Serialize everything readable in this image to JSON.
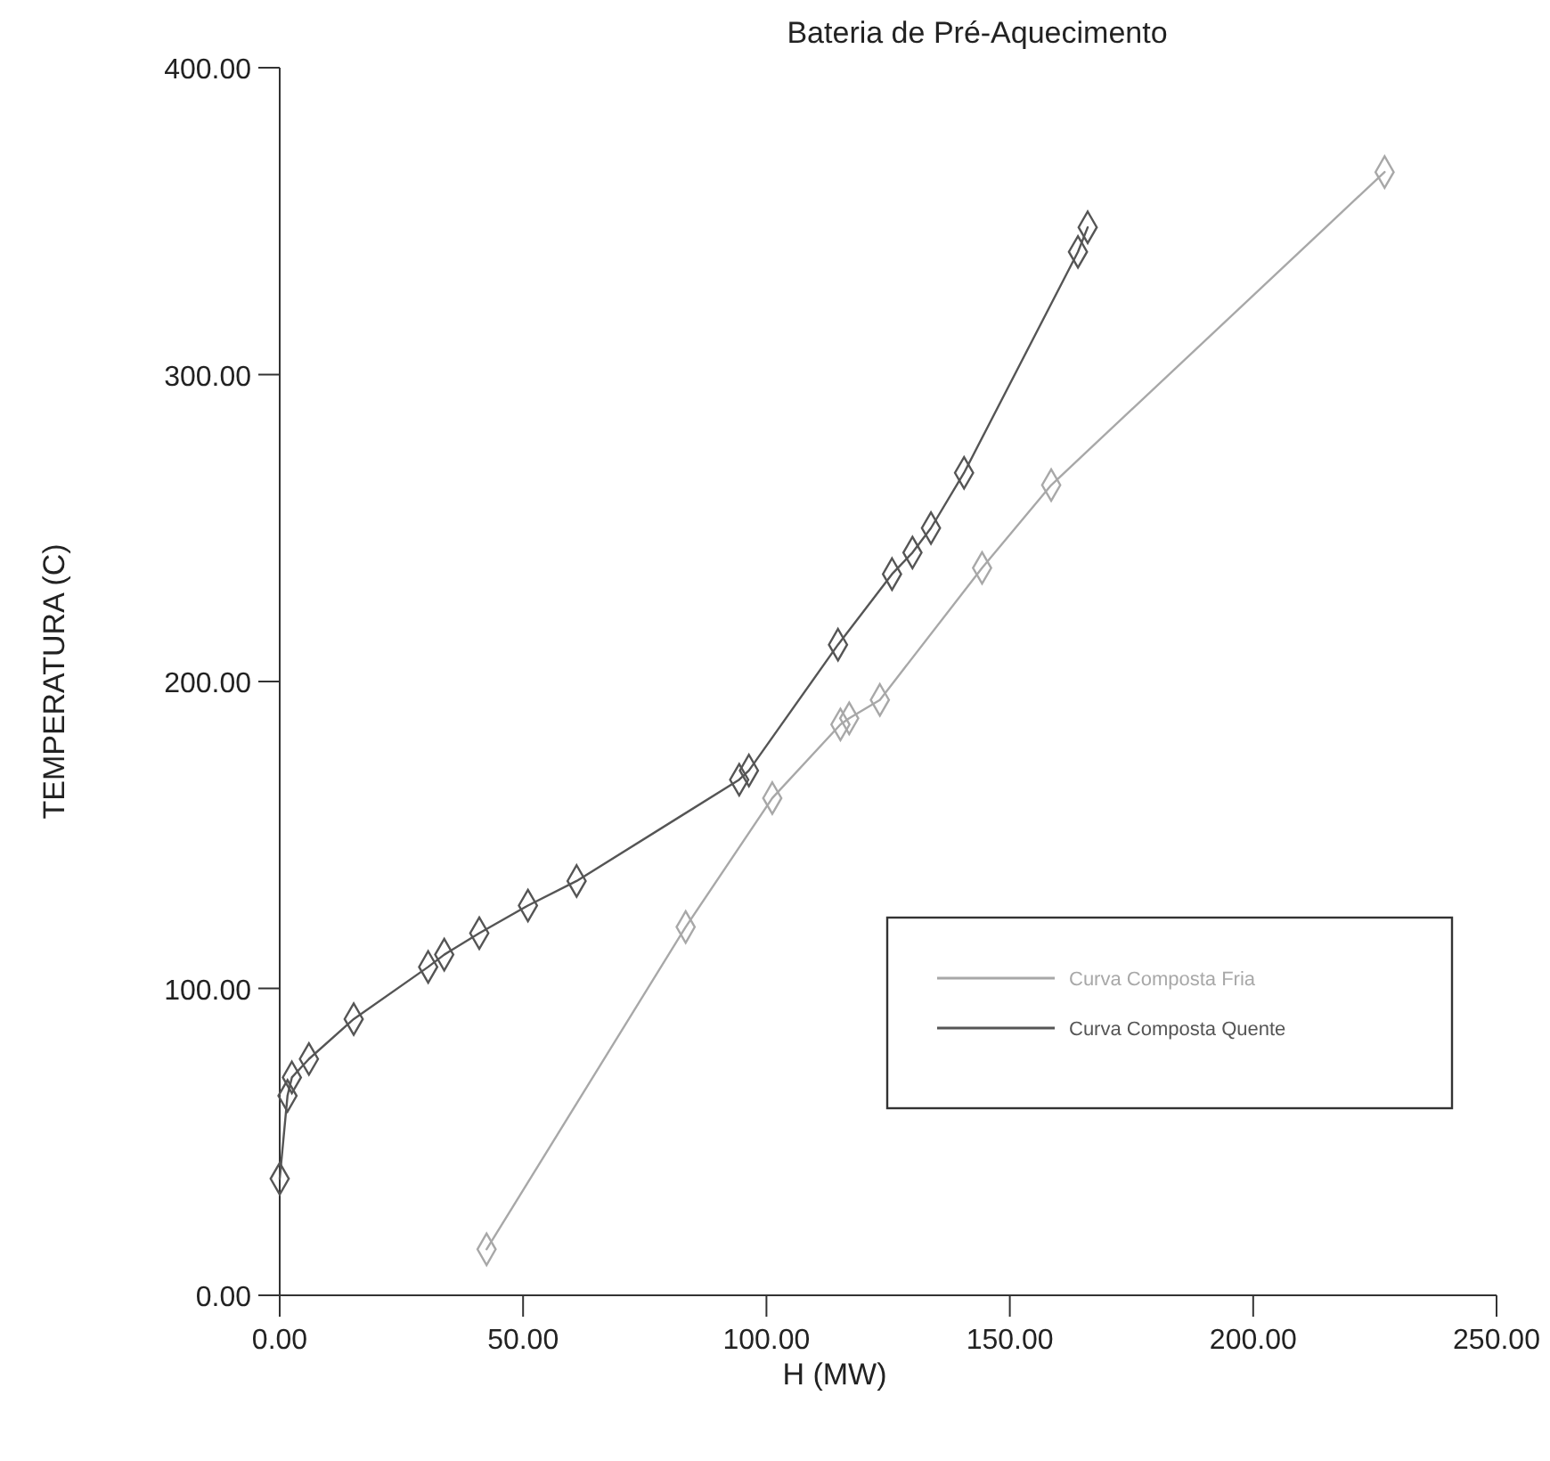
{
  "chart_data": {
    "type": "line",
    "title": "Bateria de Pré-Aquecimento",
    "xlabel": "H (MW)",
    "ylabel": "TEMPERATURA (C)",
    "xlim": [
      0,
      250
    ],
    "xticks": [
      {
        "value": 0,
        "label": "0.00"
      },
      {
        "value": 50,
        "label": "50.00"
      },
      {
        "value": 100,
        "label": "100.00"
      },
      {
        "value": 150,
        "label": "150.00"
      },
      {
        "value": 200,
        "label": "200.00"
      },
      {
        "value": 250,
        "label": "250.00"
      }
    ],
    "ylim": [
      0,
      400
    ],
    "yticks": [
      {
        "value": 0,
        "label": "0.00"
      },
      {
        "value": 100,
        "label": "100.00"
      },
      {
        "value": 200,
        "label": "200.00"
      },
      {
        "value": 300,
        "label": "300.00"
      },
      {
        "value": 400,
        "label": "400.00"
      }
    ],
    "grid": false,
    "legend": "right",
    "marker": "diamond",
    "line_style": "solid",
    "series": [
      {
        "name": "Curva Composta Fria",
        "color": "#a8a8a8",
        "x": [
          42.5,
          83.4,
          101.2,
          115.2,
          117,
          123.3,
          144.3,
          158.5,
          227
        ],
        "values": [
          15,
          120,
          162,
          186,
          188,
          194,
          237,
          264,
          366
        ]
      },
      {
        "name": "Curva Composta Quente",
        "color": "#555555",
        "x": [
          0,
          1.6,
          2.5,
          6,
          15.2,
          30.5,
          33.8,
          41,
          51,
          61,
          94.4,
          96.4,
          114.7,
          125.8,
          130,
          133.8,
          140.6,
          164,
          166
        ],
        "values": [
          38,
          65,
          71,
          77,
          90,
          107,
          111,
          118,
          127,
          135,
          168,
          171,
          212,
          235,
          242,
          250,
          268,
          340,
          348
        ]
      }
    ]
  }
}
